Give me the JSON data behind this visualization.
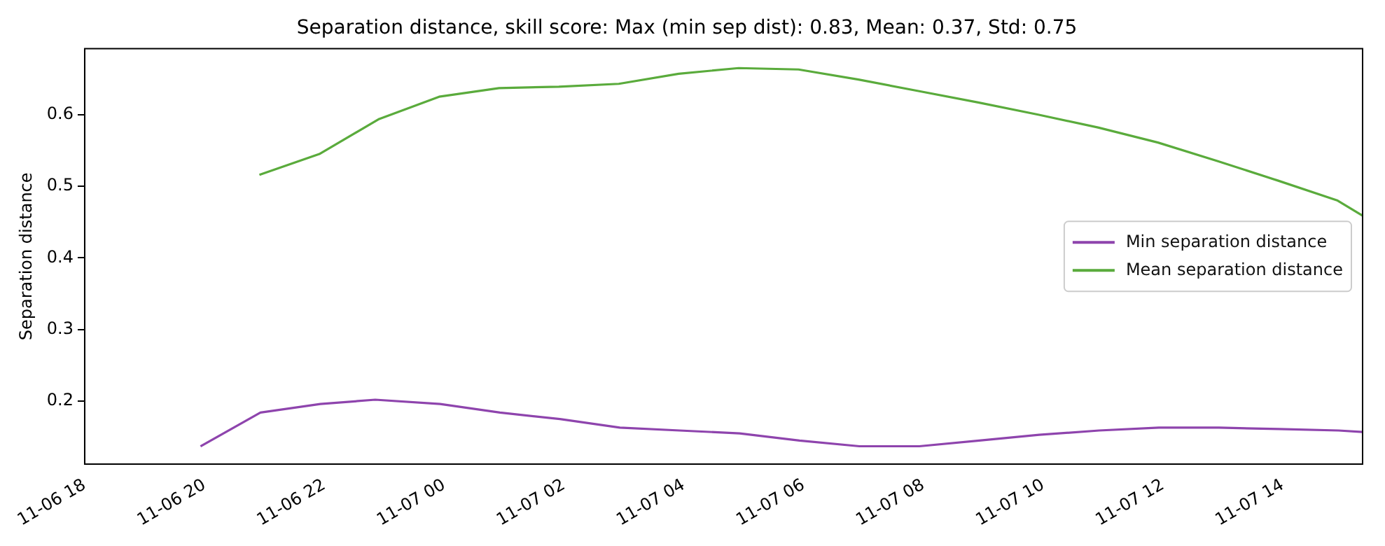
{
  "chart_data": {
    "type": "line",
    "title": "Separation distance, skill score: Max (min sep dist): 0.83, Mean: 0.37, Std: 0.75",
    "ylabel": "Separation distance",
    "series": [
      {
        "name": "Min separation distance",
        "color": "#8e44ad",
        "x": [
          "--11-06T19:56",
          "--11-06T20:56",
          "--11-06T21:56",
          "--11-06T22:51",
          "--11-06T23:56",
          "--11-07T00:56",
          "--11-07T01:56",
          "--11-07T02:56",
          "--11-07T03:56",
          "--11-07T04:56",
          "--11-07T05:56",
          "--11-07T06:56",
          "--11-07T07:56",
          "--11-07T08:56",
          "--11-07T09:56",
          "--11-07T10:56",
          "--11-07T11:56",
          "--11-07T12:56",
          "--11-07T13:56",
          "--11-07T14:56",
          "--11-07T15:20"
        ],
        "values": [
          0.137,
          0.184,
          0.196,
          0.202,
          0.196,
          0.184,
          0.175,
          0.163,
          0.159,
          0.155,
          0.145,
          0.137,
          0.137,
          0.145,
          0.153,
          0.159,
          0.163,
          0.163,
          0.161,
          0.159,
          0.157
        ]
      },
      {
        "name": "Mean separation distance",
        "color": "#5aab3c",
        "x": [
          "--11-06T20:55",
          "--11-06T21:55",
          "--11-06T22:55",
          "--11-06T23:55",
          "--11-07T00:55",
          "--11-07T01:55",
          "--11-07T02:55",
          "--11-07T03:55",
          "--11-07T04:55",
          "--11-07T05:55",
          "--11-07T06:55",
          "--11-07T07:55",
          "--11-07T08:55",
          "--11-07T09:55",
          "--11-07T10:55",
          "--11-07T11:55",
          "--11-07T12:55",
          "--11-07T13:55",
          "--11-07T14:55",
          "--11-07T15:20"
        ],
        "values": [
          0.516,
          0.545,
          0.594,
          0.625,
          0.637,
          0.639,
          0.643,
          0.657,
          0.665,
          0.663,
          0.649,
          0.633,
          0.617,
          0.6,
          0.582,
          0.561,
          0.535,
          0.508,
          0.48,
          0.459
        ]
      }
    ],
    "xlim": [
      "--11-06T18:00",
      "--11-07T15:20"
    ],
    "xticks": [
      {
        "value": "--11-06T18:00",
        "label": "11-06 18"
      },
      {
        "value": "--11-06T20:00",
        "label": "11-06 20"
      },
      {
        "value": "--11-06T22:00",
        "label": "11-06 22"
      },
      {
        "value": "--11-07T00:00",
        "label": "11-07 00"
      },
      {
        "value": "--11-07T02:00",
        "label": "11-07 02"
      },
      {
        "value": "--11-07T04:00",
        "label": "11-07 04"
      },
      {
        "value": "--11-07T06:00",
        "label": "11-07 06"
      },
      {
        "value": "--11-07T08:00",
        "label": "11-07 08"
      },
      {
        "value": "--11-07T10:00",
        "label": "11-07 10"
      },
      {
        "value": "--11-07T12:00",
        "label": "11-07 12"
      },
      {
        "value": "--11-07T14:00",
        "label": "11-07 14"
      }
    ],
    "ylim": [
      0.112,
      0.692
    ],
    "yticks": [
      {
        "value": 0.2,
        "label": "0.2"
      },
      {
        "value": 0.3,
        "label": "0.3"
      },
      {
        "value": 0.4,
        "label": "0.4"
      },
      {
        "value": 0.5,
        "label": "0.5"
      },
      {
        "value": 0.6,
        "label": "0.6"
      }
    ],
    "legend": "right",
    "grid": false,
    "marker": "none",
    "line_style": "solid"
  }
}
